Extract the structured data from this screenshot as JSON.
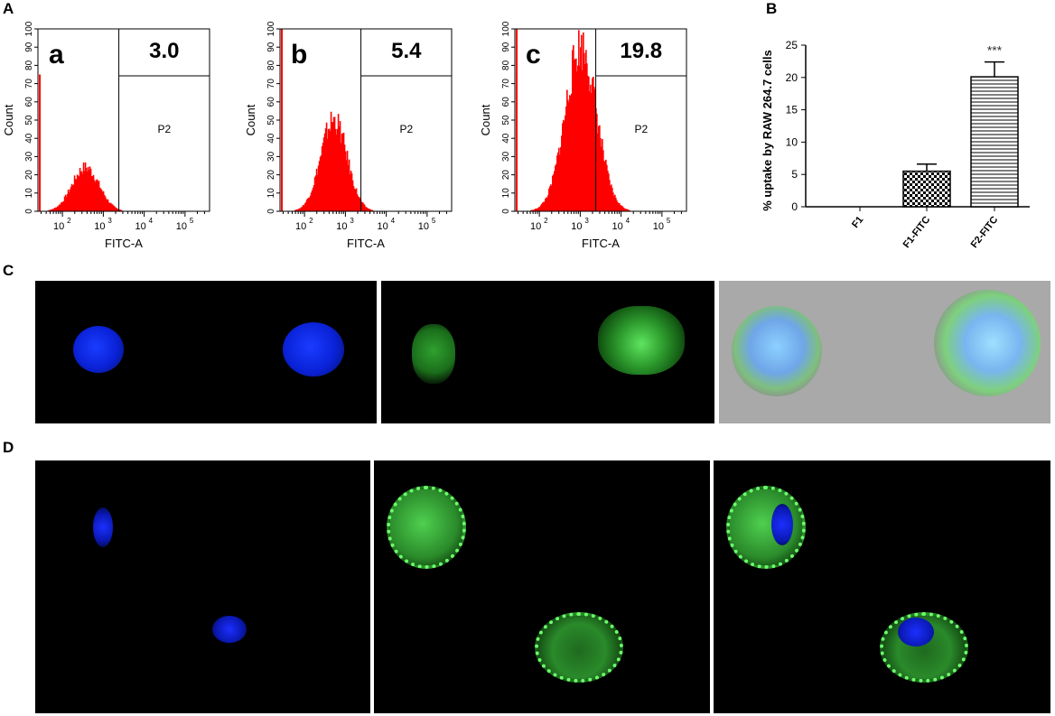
{
  "panel_labels": {
    "A": "A",
    "B": "B",
    "C": "C",
    "D": "D"
  },
  "chart_data": [
    {
      "type": "area",
      "panel": "a",
      "value_label": "3.0",
      "gate_label": "P2",
      "xlabel": "FITC-A",
      "ylabel": "Count",
      "xscale": "log",
      "xticks": [
        "10",
        "10",
        "10",
        "10"
      ],
      "xtick_exps": [
        "2",
        "3",
        "4",
        "5"
      ],
      "ylim": [
        0,
        100
      ],
      "yticks": [
        "0",
        "10",
        "20",
        "30",
        "40",
        "50",
        "60",
        "70",
        "80",
        "90",
        "100"
      ],
      "histogram": {
        "peak_log_fitc": 2.55,
        "peak_count": 24,
        "spread": 0.33,
        "left_spike": 75,
        "range_log": [
          1.55,
          3.45
        ]
      }
    },
    {
      "type": "area",
      "panel": "b",
      "value_label": "5.4",
      "gate_label": "P2",
      "xlabel": "FITC-A",
      "ylabel": "Count",
      "xscale": "log",
      "xticks": [
        "10",
        "10",
        "10",
        "10"
      ],
      "xtick_exps": [
        "2",
        "3",
        "4",
        "5"
      ],
      "ylim": [
        0,
        100
      ],
      "yticks": [
        "0",
        "10",
        "20",
        "30",
        "40",
        "50",
        "60",
        "70",
        "80",
        "90",
        "100"
      ],
      "histogram": {
        "peak_log_fitc": 2.7,
        "peak_count": 50,
        "spread": 0.32,
        "left_spike": 100,
        "range_log": [
          1.55,
          3.8
        ]
      }
    },
    {
      "type": "area",
      "panel": "c",
      "value_label": "19.8",
      "gate_label": "P2",
      "xlabel": "FITC-A",
      "ylabel": "Count",
      "xscale": "log",
      "xticks": [
        "10",
        "10",
        "10",
        "10"
      ],
      "xtick_exps": [
        "2",
        "3",
        "4",
        "5"
      ],
      "ylim": [
        0,
        100
      ],
      "yticks": [
        "0",
        "10",
        "20",
        "30",
        "40",
        "50",
        "60",
        "70",
        "80",
        "90",
        "100"
      ],
      "histogram": {
        "peak_log_fitc": 3.0,
        "peak_count": 90,
        "spread": 0.38,
        "left_spike": 100,
        "range_log": [
          1.6,
          4.2
        ]
      }
    },
    {
      "type": "bar",
      "panel": "B",
      "categories": [
        "F1",
        "F1-FITC",
        "F2-FITC"
      ],
      "values": [
        0,
        5.5,
        20.1
      ],
      "errors": [
        0,
        1.1,
        2.3
      ],
      "patterns": [
        "none",
        "checker",
        "hlines"
      ],
      "significance": [
        "",
        "",
        "***"
      ],
      "ylabel": "% uptake by RAW 264.7 cells",
      "ylim": [
        0,
        25
      ],
      "yticks": [
        "0",
        "5",
        "10",
        "15",
        "20",
        "25"
      ]
    }
  ]
}
